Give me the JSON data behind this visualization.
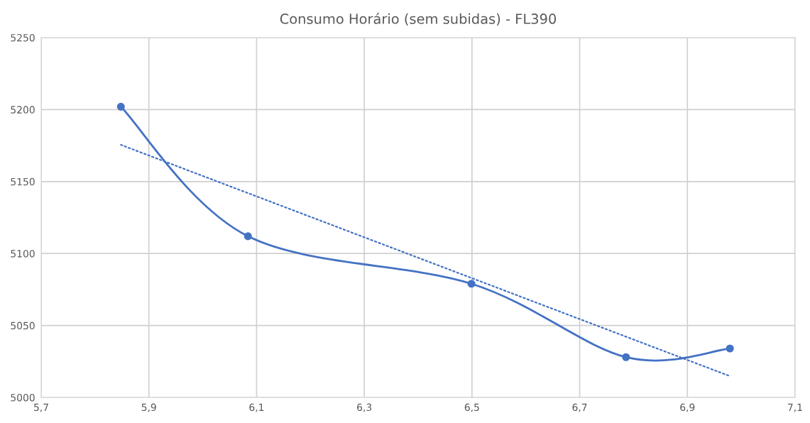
{
  "chart_data": {
    "type": "line",
    "title": "Consumo Horário (sem subidas) - FL390",
    "series": [
      {
        "color": "#4472c4",
        "marker": "circle",
        "line_style": "solid",
        "x": [
          5.848,
          6.084,
          6.499,
          6.786,
          6.979
        ],
        "values": [
          5202,
          5112,
          5079,
          5028,
          5034
        ]
      },
      {
        "color": "#4472c4",
        "marker": "none",
        "line_style": "dotted",
        "x": [
          5.848,
          6.979
        ],
        "values": [
          5175.5,
          5014.8
        ]
      }
    ],
    "xlim": [
      5.7,
      7.1
    ],
    "xticks": [
      {
        "value": 5.7,
        "label": "5,7"
      },
      {
        "value": 5.9,
        "label": "5,9"
      },
      {
        "value": 6.1,
        "label": "6,1"
      },
      {
        "value": 6.3,
        "label": "6,3"
      },
      {
        "value": 6.5,
        "label": "6,5"
      },
      {
        "value": 6.7,
        "label": "6,7"
      },
      {
        "value": 6.9,
        "label": "6,9"
      },
      {
        "value": 7.1,
        "label": "7,1"
      }
    ],
    "ylim": [
      5000,
      5250
    ],
    "yticks": [
      5000,
      5050,
      5100,
      5150,
      5200,
      5250
    ],
    "grid": true
  }
}
